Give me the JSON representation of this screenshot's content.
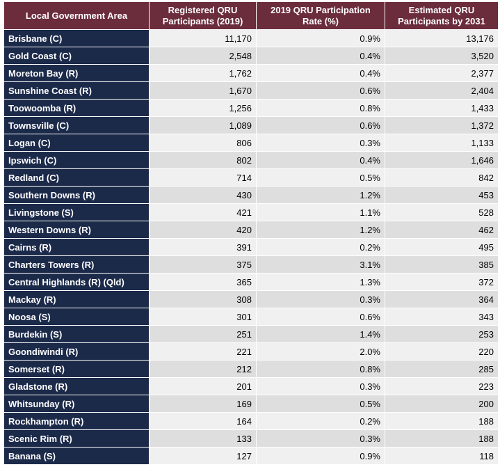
{
  "headers": [
    "Local Government Area",
    "Registered QRU Participants (2019)",
    "2019 QRU Participation Rate (%)",
    "Estimated QRU Participants by 2031"
  ],
  "rows": [
    {
      "lga": "Brisbane (C)",
      "registered": "11,170",
      "rate": "0.9%",
      "estimated": "13,176"
    },
    {
      "lga": "Gold Coast (C)",
      "registered": "2,548",
      "rate": "0.4%",
      "estimated": "3,520"
    },
    {
      "lga": "Moreton Bay (R)",
      "registered": "1,762",
      "rate": "0.4%",
      "estimated": "2,377"
    },
    {
      "lga": "Sunshine Coast (R)",
      "registered": "1,670",
      "rate": "0.6%",
      "estimated": "2,404"
    },
    {
      "lga": "Toowoomba (R)",
      "registered": "1,256",
      "rate": "0.8%",
      "estimated": "1,433"
    },
    {
      "lga": "Townsville (C)",
      "registered": "1,089",
      "rate": "0.6%",
      "estimated": "1,372"
    },
    {
      "lga": "Logan (C)",
      "registered": "806",
      "rate": "0.3%",
      "estimated": "1,133"
    },
    {
      "lga": "Ipswich (C)",
      "registered": "802",
      "rate": "0.4%",
      "estimated": "1,646"
    },
    {
      "lga": "Redland (C)",
      "registered": "714",
      "rate": "0.5%",
      "estimated": "842"
    },
    {
      "lga": "Southern Downs (R)",
      "registered": "430",
      "rate": "1.2%",
      "estimated": "453"
    },
    {
      "lga": "Livingstone (S)",
      "registered": "421",
      "rate": "1.1%",
      "estimated": "528"
    },
    {
      "lga": "Western Downs (R)",
      "registered": "420",
      "rate": "1.2%",
      "estimated": "462"
    },
    {
      "lga": "Cairns (R)",
      "registered": "391",
      "rate": "0.2%",
      "estimated": "495"
    },
    {
      "lga": "Charters Towers (R)",
      "registered": "375",
      "rate": "3.1%",
      "estimated": "385"
    },
    {
      "lga": "Central Highlands (R) (Qld)",
      "registered": "365",
      "rate": "1.3%",
      "estimated": "372"
    },
    {
      "lga": "Mackay (R)",
      "registered": "308",
      "rate": "0.3%",
      "estimated": "364"
    },
    {
      "lga": "Noosa (S)",
      "registered": "301",
      "rate": "0.6%",
      "estimated": "343"
    },
    {
      "lga": "Burdekin (S)",
      "registered": "251",
      "rate": "1.4%",
      "estimated": "253"
    },
    {
      "lga": "Goondiwindi (R)",
      "registered": "221",
      "rate": "2.0%",
      "estimated": "220"
    },
    {
      "lga": "Somerset (R)",
      "registered": "212",
      "rate": "0.8%",
      "estimated": "285"
    },
    {
      "lga": "Gladstone (R)",
      "registered": "201",
      "rate": "0.3%",
      "estimated": "223"
    },
    {
      "lga": "Whitsunday (R)",
      "registered": "169",
      "rate": "0.5%",
      "estimated": "200"
    },
    {
      "lga": "Rockhampton (R)",
      "registered": "164",
      "rate": "0.2%",
      "estimated": "188"
    },
    {
      "lga": "Scenic Rim (R)",
      "registered": "133",
      "rate": "0.3%",
      "estimated": "188"
    },
    {
      "lga": "Banana (S)",
      "registered": "127",
      "rate": "0.9%",
      "estimated": "118"
    }
  ]
}
